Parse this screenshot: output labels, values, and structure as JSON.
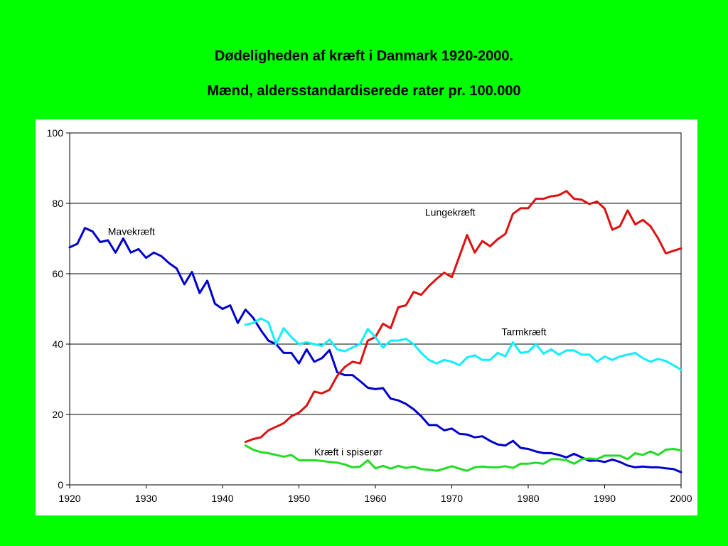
{
  "title": "Dødeligheden af kræft i Danmark 1920-2000.",
  "subtitle": "Mænd, aldersstandardiserede rater pr. 100.000",
  "chart_data": {
    "type": "line",
    "title": "Dødeligheden af kræft i Danmark 1920-2000.",
    "subtitle": "Mænd, aldersstandardiserede rater pr. 100.000",
    "xlabel": "",
    "ylabel": "",
    "xlim": [
      1920,
      2000
    ],
    "ylim": [
      0,
      100
    ],
    "x_ticks": [
      "1920",
      "1930",
      "1940",
      "1950",
      "1960",
      "1970",
      "1980",
      "1990",
      "2000"
    ],
    "y_ticks": [
      "0",
      "20",
      "40",
      "60",
      "80",
      "100"
    ],
    "grid": "horizontal",
    "legend": "none",
    "series": [
      {
        "name": "Mavekræft",
        "color": "#0000cc",
        "x": [
          1920,
          1921,
          1922,
          1923,
          1924,
          1925,
          1926,
          1927,
          1928,
          1929,
          1930,
          1931,
          1932,
          1933,
          1934,
          1935,
          1936,
          1937,
          1938,
          1939,
          1940,
          1941,
          1942,
          1943,
          1944,
          1945,
          1946,
          1947,
          1948,
          1949,
          1950,
          1951,
          1952,
          1953,
          1954,
          1955,
          1956,
          1957,
          1958,
          1959,
          1960,
          1961,
          1962,
          1963,
          1964,
          1965,
          1966,
          1967,
          1968,
          1969,
          1970,
          1971,
          1972,
          1973,
          1974,
          1975,
          1976,
          1977,
          1978,
          1979,
          1980,
          1981,
          1982,
          1983,
          1984,
          1985,
          1986,
          1987,
          1988,
          1989,
          1990,
          1991,
          1992,
          1993,
          1994,
          1995,
          1996,
          1997,
          1998,
          1999,
          2000
        ],
        "y": [
          67.5,
          68.5,
          73,
          72,
          69,
          69.5,
          66,
          70,
          66,
          67,
          64.5,
          66,
          65,
          63,
          61.5,
          57,
          60.5,
          54.5,
          58,
          51.5,
          50,
          51,
          46,
          49.8,
          47.5,
          44,
          41,
          40,
          37.5,
          37.5,
          34.5,
          38.5,
          35,
          36,
          38.3,
          32,
          31.2,
          31.2,
          29.5,
          27.6,
          27.2,
          27.5,
          24.5,
          24,
          23,
          21.5,
          19.5,
          17,
          17,
          15.5,
          16,
          14.5,
          14.3,
          13.5,
          13.8,
          12.5,
          11.5,
          11.2,
          12.5,
          10.5,
          10.2,
          9.5,
          9,
          9,
          8.5,
          7.8,
          8.8,
          7.8,
          6.8,
          6.9,
          6.5,
          7.2,
          6.5,
          5.5,
          5,
          5.2,
          5,
          5,
          4.7,
          4.5,
          3.6
        ]
      },
      {
        "name": "Lungekræft",
        "color": "#dd1111",
        "x": [
          1943,
          1944,
          1945,
          1946,
          1947,
          1948,
          1949,
          1950,
          1951,
          1952,
          1953,
          1954,
          1955,
          1956,
          1957,
          1958,
          1959,
          1960,
          1961,
          1962,
          1963,
          1964,
          1965,
          1966,
          1967,
          1968,
          1969,
          1970,
          1971,
          1972,
          1973,
          1974,
          1975,
          1976,
          1977,
          1978,
          1979,
          1980,
          1981,
          1982,
          1983,
          1984,
          1985,
          1986,
          1987,
          1988,
          1989,
          1990,
          1991,
          1992,
          1993,
          1994,
          1995,
          1996,
          1997,
          1998,
          1999,
          2000
        ],
        "y": [
          12.2,
          13,
          13.5,
          15.5,
          16.5,
          17.5,
          19.5,
          20.5,
          22.5,
          26.5,
          26,
          27,
          31,
          33.5,
          35,
          34.5,
          41,
          42,
          45.8,
          44.5,
          50.5,
          51,
          54.8,
          54,
          56.5,
          58.5,
          60.3,
          59,
          65,
          71,
          66,
          69.3,
          67.8,
          69.8,
          71.3,
          77,
          78.6,
          78.6,
          81.3,
          81.3,
          82,
          82.3,
          83.5,
          81.3,
          81,
          79.8,
          80.5,
          78.5,
          72.5,
          73.5,
          78,
          74,
          75.3,
          73.5,
          70,
          65.8,
          66.5,
          67.2
        ]
      },
      {
        "name": "Tarmkræft",
        "color": "#11eeff",
        "x": [
          1943,
          1944,
          1945,
          1946,
          1947,
          1948,
          1949,
          1950,
          1951,
          1952,
          1953,
          1954,
          1955,
          1956,
          1957,
          1958,
          1959,
          1960,
          1961,
          1962,
          1963,
          1964,
          1965,
          1966,
          1967,
          1968,
          1969,
          1970,
          1971,
          1972,
          1973,
          1974,
          1975,
          1976,
          1977,
          1978,
          1979,
          1980,
          1981,
          1982,
          1983,
          1984,
          1985,
          1986,
          1987,
          1988,
          1989,
          1990,
          1991,
          1992,
          1993,
          1994,
          1995,
          1996,
          1997,
          1998,
          1999,
          2000
        ],
        "y": [
          45.5,
          46,
          47.3,
          46.2,
          40,
          44.5,
          42,
          40,
          40.5,
          40,
          39.5,
          41.3,
          38.5,
          38,
          39,
          40,
          44.3,
          42,
          39,
          41,
          41,
          41.5,
          40,
          37.5,
          35.5,
          34.5,
          35.5,
          35,
          34,
          36.2,
          36.8,
          35.5,
          35.5,
          37.5,
          36.5,
          40.5,
          37.5,
          37.8,
          40,
          37.3,
          38.5,
          37,
          38.2,
          38.2,
          37,
          37,
          35,
          36.5,
          35.5,
          36.5,
          37,
          37.5,
          36,
          35,
          35.8,
          35.2,
          34,
          32.7
        ]
      },
      {
        "name": "Kræft i spiserør",
        "color": "#22dd22",
        "x": [
          1943,
          1944,
          1945,
          1946,
          1947,
          1948,
          1949,
          1950,
          1951,
          1952,
          1953,
          1954,
          1955,
          1956,
          1957,
          1958,
          1959,
          1960,
          1961,
          1962,
          1963,
          1964,
          1965,
          1966,
          1967,
          1968,
          1969,
          1970,
          1971,
          1972,
          1973,
          1974,
          1975,
          1976,
          1977,
          1978,
          1979,
          1980,
          1981,
          1982,
          1983,
          1984,
          1985,
          1986,
          1987,
          1988,
          1989,
          1990,
          1991,
          1992,
          1993,
          1994,
          1995,
          1996,
          1997,
          1998,
          1999,
          2000
        ],
        "y": [
          11.2,
          10,
          9.3,
          9,
          8.5,
          8,
          8.5,
          7,
          7,
          7,
          6.8,
          6.5,
          6.3,
          5.8,
          5,
          5.2,
          7,
          4.7,
          5.4,
          4.6,
          5.4,
          4.8,
          5.2,
          4.5,
          4.3,
          4,
          4.6,
          5.3,
          4.6,
          4,
          5,
          5.2,
          5,
          5,
          5.3,
          4.8,
          6,
          6,
          6.3,
          6,
          7.3,
          7.3,
          7,
          6,
          7.3,
          7.5,
          7.3,
          8.3,
          8.3,
          8.3,
          7.3,
          9,
          8.5,
          9.5,
          8.5,
          10,
          10.2,
          9.8
        ]
      }
    ],
    "annotations": [
      {
        "text": "Mavekræft",
        "series": "Mavekræft",
        "at_x": 1925,
        "at_y": 71
      },
      {
        "text": "Lungekræft",
        "series": "Lungekræft",
        "at_x": 1966.5,
        "at_y": 76.5
      },
      {
        "text": "Tarmkræft",
        "series": "Tarmkræft",
        "at_x": 1976.5,
        "at_y": 42.5
      },
      {
        "text": "Kræft i spiserør",
        "series": "Kræft i spiserør",
        "at_x": 1952,
        "at_y": 8.4
      }
    ]
  }
}
